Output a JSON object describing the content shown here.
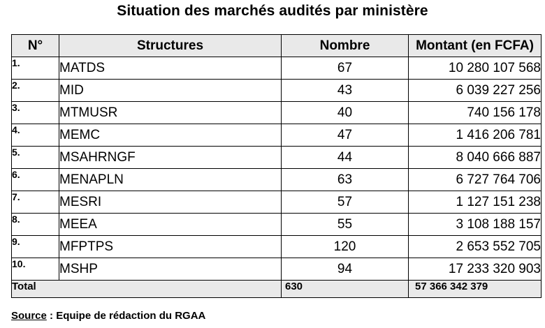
{
  "title": "Situation des marchés audités par ministère",
  "table": {
    "headers": {
      "num": "N°",
      "structure": "Structures",
      "count": "Nombre",
      "amount": "Montant (en FCFA)"
    },
    "rows": [
      {
        "num": "1.",
        "structure": "MATDS",
        "count": "67",
        "amount": "10 280 107 568"
      },
      {
        "num": "2.",
        "structure": "MID",
        "count": "43",
        "amount": "6 039 227 256"
      },
      {
        "num": "3.",
        "structure": "MTMUSR",
        "count": "40",
        "amount": "740 156 178"
      },
      {
        "num": "4.",
        "structure": "MEMC",
        "count": "47",
        "amount": "1 416 206 781"
      },
      {
        "num": "5.",
        "structure": "MSAHRNGF",
        "count": "44",
        "amount": "8 040 666 887"
      },
      {
        "num": "6.",
        "structure": "MENAPLN",
        "count": "63",
        "amount": "6 727 764 706"
      },
      {
        "num": "7.",
        "structure": "MESRI",
        "count": "57",
        "amount": "1 127 151 238"
      },
      {
        "num": "8.",
        "structure": "MEEA",
        "count": "55",
        "amount": "3 108 188 157"
      },
      {
        "num": "9.",
        "structure": "MFPTPS",
        "count": "120",
        "amount": "2 653 552 705"
      },
      {
        "num": "10.",
        "structure": "MSHP",
        "count": "94",
        "amount": "17 233 320 903"
      }
    ],
    "total": {
      "label": "Total",
      "count": "630",
      "amount": "57 366 342 379"
    }
  },
  "source": {
    "label": "Source",
    "text": " : Equipe de rédaction du RGAA"
  }
}
